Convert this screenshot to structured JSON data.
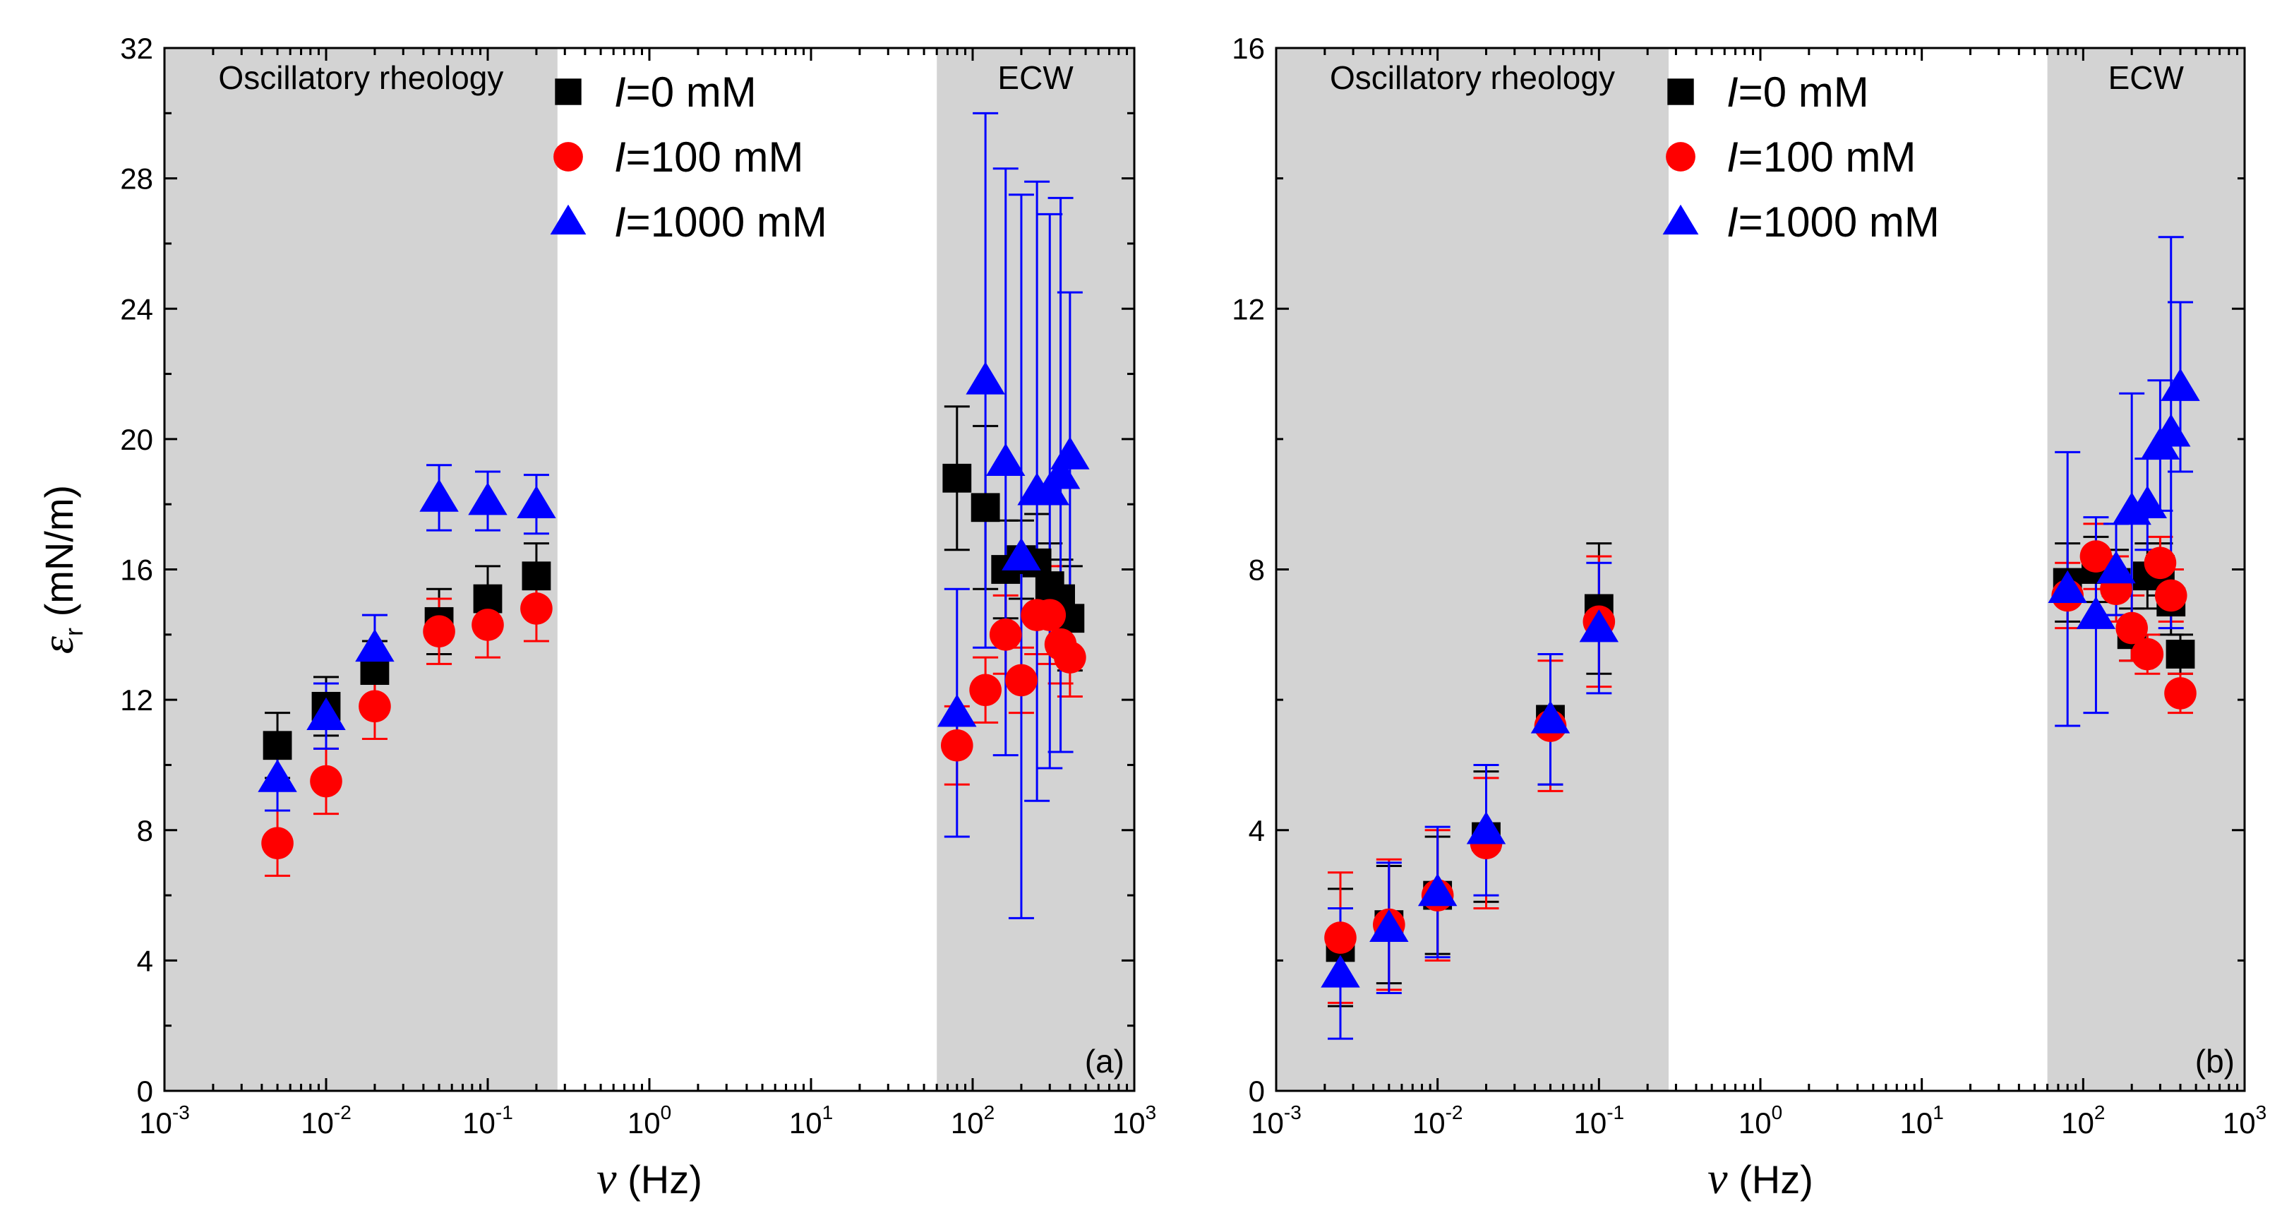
{
  "chart_data": [
    {
      "type": "scatter",
      "panel_label": "(a)",
      "xscale": "log",
      "xlim": [
        0.001,
        1000
      ],
      "ylim": [
        0,
        32
      ],
      "yticks": [
        "0",
        "4",
        "8",
        "12",
        "16",
        "20",
        "24",
        "28",
        "32"
      ],
      "xticks_base": "10",
      "xticks_exp": [
        "-3",
        "-2",
        "-1",
        "0",
        "1",
        "2",
        "3"
      ],
      "xlabel_symbol": "ν",
      "xlabel_unit": " (Hz)",
      "ylabel_symbol": "ε",
      "ylabel_sub": "r",
      "ylabel_unit": " (mN/m)",
      "regions": [
        {
          "label": "Oscillatory rheology",
          "x": [
            0.001,
            0.27
          ]
        },
        {
          "label": "ECW",
          "x": [
            60,
            1000
          ]
        }
      ],
      "legend": [
        "I=0 mM",
        "I=100 mM",
        "I=1000 mM"
      ],
      "series": [
        {
          "name": "I=0 mM",
          "marker": "square",
          "color": "#000000",
          "points": [
            [
              0.005,
              10.6,
              1.0
            ],
            [
              0.01,
              11.8,
              0.9
            ],
            [
              0.02,
              12.9,
              0.9
            ],
            [
              0.05,
              14.4,
              1.0
            ],
            [
              0.1,
              15.1,
              1.0
            ],
            [
              0.2,
              15.8,
              1.0
            ],
            [
              80,
              18.8,
              2.2
            ],
            [
              120,
              17.9,
              2.5
            ],
            [
              160,
              16.0,
              1.5
            ],
            [
              200,
              16.3,
              1.2
            ],
            [
              250,
              16.2,
              1.5
            ],
            [
              300,
              15.5,
              1.3
            ],
            [
              350,
              15.1,
              1.2
            ],
            [
              400,
              14.5,
              1.6
            ]
          ]
        },
        {
          "name": "I=100 mM",
          "marker": "circle",
          "color": "#ff0000",
          "points": [
            [
              0.005,
              7.6,
              1.0
            ],
            [
              0.01,
              9.5,
              1.0
            ],
            [
              0.02,
              11.8,
              1.0
            ],
            [
              0.05,
              14.1,
              1.0
            ],
            [
              0.1,
              14.3,
              1.0
            ],
            [
              0.2,
              14.8,
              1.0
            ],
            [
              80,
              10.6,
              1.2
            ],
            [
              120,
              12.3,
              1.0
            ],
            [
              160,
              14.0,
              1.2
            ],
            [
              200,
              12.6,
              1.0
            ],
            [
              250,
              14.6,
              1.2
            ],
            [
              300,
              14.6,
              1.5
            ],
            [
              350,
              13.7,
              1.2
            ],
            [
              400,
              13.3,
              1.2
            ]
          ]
        },
        {
          "name": "I=1000 mM",
          "marker": "triangle",
          "color": "#0000ff",
          "points": [
            [
              0.005,
              9.6,
              1.0
            ],
            [
              0.01,
              11.5,
              1.0
            ],
            [
              0.02,
              13.6,
              1.0
            ],
            [
              0.05,
              18.2,
              1.0
            ],
            [
              0.1,
              18.1,
              0.9
            ],
            [
              0.2,
              18.0,
              0.9
            ],
            [
              80,
              11.6,
              3.8
            ],
            [
              120,
              21.8,
              8.2
            ],
            [
              160,
              19.3,
              9.0
            ],
            [
              200,
              16.4,
              11.1
            ],
            [
              250,
              18.4,
              9.5
            ],
            [
              300,
              18.4,
              8.5
            ],
            [
              350,
              18.9,
              8.5
            ],
            [
              400,
              19.5,
              5.0
            ]
          ]
        }
      ]
    },
    {
      "type": "scatter",
      "panel_label": "(b)",
      "xscale": "log",
      "xlim": [
        0.001,
        1000
      ],
      "ylim": [
        0,
        16
      ],
      "yticks": [
        "0",
        "4",
        "8",
        "12",
        "16"
      ],
      "xticks_base": "10",
      "xticks_exp": [
        "-3",
        "-2",
        "-1",
        "0",
        "1",
        "2",
        "3"
      ],
      "xlabel_symbol": "ν",
      "xlabel_unit": " (Hz)",
      "regions": [
        {
          "label": "Oscillatory rheology",
          "x": [
            0.001,
            0.27
          ]
        },
        {
          "label": "ECW",
          "x": [
            60,
            1000
          ]
        }
      ],
      "legend": [
        "I=0 mM",
        "I=100 mM",
        "I=1000 mM"
      ],
      "series": [
        {
          "name": "I=0 mM",
          "marker": "square",
          "color": "#000000",
          "points": [
            [
              0.0025,
              2.2,
              0.9
            ],
            [
              0.005,
              2.55,
              0.9
            ],
            [
              0.01,
              3.0,
              0.9
            ],
            [
              0.02,
              3.9,
              1.0
            ],
            [
              0.05,
              5.7,
              1.0
            ],
            [
              0.1,
              7.4,
              1.0
            ],
            [
              80,
              7.8,
              0.6
            ],
            [
              120,
              8.0,
              0.5
            ],
            [
              160,
              7.8,
              0.5
            ],
            [
              200,
              7.0,
              0.4
            ],
            [
              250,
              7.9,
              0.5
            ],
            [
              300,
              8.0,
              0.4
            ],
            [
              350,
              7.5,
              0.5
            ],
            [
              400,
              6.7,
              0.3
            ]
          ]
        },
        {
          "name": "I=100 mM",
          "marker": "circle",
          "color": "#ff0000",
          "points": [
            [
              0.0025,
              2.35,
              1.0
            ],
            [
              0.005,
              2.55,
              1.0
            ],
            [
              0.01,
              3.0,
              1.0
            ],
            [
              0.02,
              3.8,
              1.0
            ],
            [
              0.05,
              5.6,
              1.0
            ],
            [
              0.1,
              7.2,
              1.0
            ],
            [
              80,
              7.6,
              0.5
            ],
            [
              120,
              8.2,
              0.5
            ],
            [
              160,
              7.7,
              0.5
            ],
            [
              200,
              7.1,
              0.5
            ],
            [
              250,
              6.7,
              0.3
            ],
            [
              300,
              8.1,
              0.4
            ],
            [
              350,
              7.6,
              0.4
            ],
            [
              400,
              6.1,
              0.3
            ]
          ]
        },
        {
          "name": "I=1000 mM",
          "marker": "triangle",
          "color": "#0000ff",
          "points": [
            [
              0.0025,
              1.8,
              1.0
            ],
            [
              0.005,
              2.5,
              1.0
            ],
            [
              0.01,
              3.05,
              1.0
            ],
            [
              0.02,
              4.0,
              1.0
            ],
            [
              0.05,
              5.7,
              1.0
            ],
            [
              0.1,
              7.1,
              1.0
            ],
            [
              80,
              7.7,
              2.1
            ],
            [
              120,
              7.3,
              1.5
            ],
            [
              160,
              8.0,
              0.7
            ],
            [
              200,
              8.9,
              1.8
            ],
            [
              250,
              9.0,
              0.7
            ],
            [
              300,
              9.9,
              1.0
            ],
            [
              350,
              10.1,
              3.0
            ],
            [
              400,
              10.8,
              1.3
            ]
          ]
        }
      ]
    }
  ]
}
